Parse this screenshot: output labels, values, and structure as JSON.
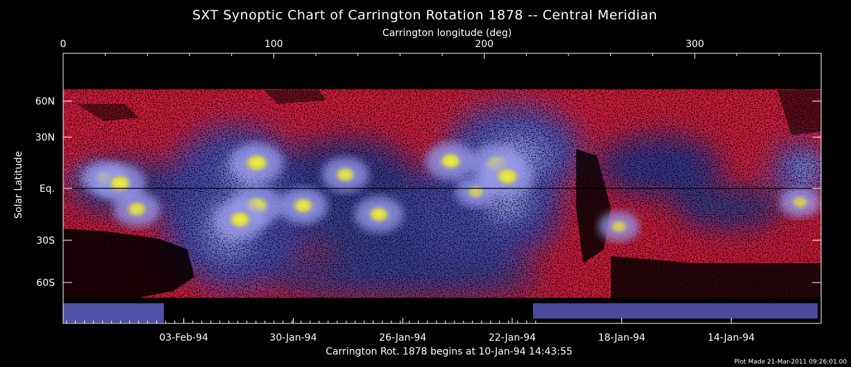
{
  "chart_data": {
    "type": "heatmap",
    "title": "SXT Synoptic Chart of Carrington Rotation 1878 -- Central Meridian",
    "top_axis_label": "Carrington longitude (deg)",
    "top_ticks": [
      "0",
      "100",
      "200",
      "300"
    ],
    "top_tick_values": [
      0,
      100,
      200,
      300
    ],
    "x_range": [
      0,
      360
    ],
    "ylabel": "Solar Latitude",
    "y_ticks": [
      "60N",
      "30N",
      "Eq.",
      "30S",
      "60S"
    ],
    "y_tick_values": [
      60,
      30,
      0,
      -30,
      -60
    ],
    "y_range": [
      -90,
      90
    ],
    "bottom_ticks": [
      "03-Feb-94",
      "30-Jan-94",
      "26-Jan-94",
      "22-Jan-94",
      "18-Jan-94",
      "14-Jan-94"
    ],
    "bottom_tick_longitudes": [
      52,
      104,
      156,
      208,
      260,
      312
    ],
    "bottom_axis_label": "Carrington Rot. 1878 begins at 10-Jan-94 14:43:55",
    "footer_note": "Plot Made 21-Mar-2011 09:26:01.00",
    "equator_line": true,
    "colors": {
      "background": "#000000",
      "quiet": "#e21a3c",
      "mid": "#3b3d8c",
      "bright": "#8a8ae4",
      "hot": "#e6e840"
    },
    "active_regions": [
      {
        "lon": 20,
        "lat": 6,
        "intensity": 0.7
      },
      {
        "lon": 27,
        "lat": 3,
        "intensity": 0.95
      },
      {
        "lon": 35,
        "lat": -12,
        "intensity": 0.8
      },
      {
        "lon": 92,
        "lat": 15,
        "intensity": 1.0
      },
      {
        "lon": 92,
        "lat": -10,
        "intensity": 1.0
      },
      {
        "lon": 84,
        "lat": -18,
        "intensity": 0.95
      },
      {
        "lon": 114,
        "lat": -10,
        "intensity": 0.85
      },
      {
        "lon": 134,
        "lat": 8,
        "intensity": 0.8
      },
      {
        "lon": 150,
        "lat": -15,
        "intensity": 0.85
      },
      {
        "lon": 184,
        "lat": 16,
        "intensity": 0.9
      },
      {
        "lon": 206,
        "lat": 14,
        "intensity": 1.0
      },
      {
        "lon": 211,
        "lat": 7,
        "intensity": 1.0
      },
      {
        "lon": 196,
        "lat": -2,
        "intensity": 0.6
      },
      {
        "lon": 264,
        "lat": -22,
        "intensity": 0.6
      },
      {
        "lon": 350,
        "lat": -8,
        "intensity": 0.6
      }
    ]
  }
}
